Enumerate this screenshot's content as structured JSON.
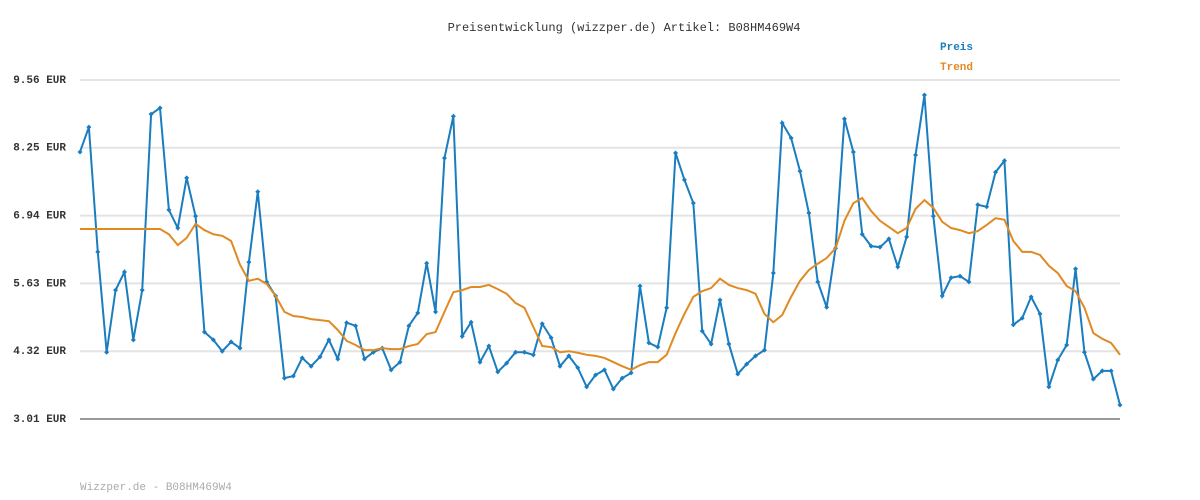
{
  "chart_data": {
    "type": "line",
    "title": "Preisentwicklung (wizzper.de) Artikel: B08HM469W4",
    "footer": "Wizzper.de - B08HM469W4",
    "legend": "top-right",
    "grid": true,
    "categories": [
      null,
      null,
      null,
      null,
      null,
      null,
      null,
      null,
      null,
      null,
      null,
      null,
      null,
      null,
      null,
      null,
      null,
      null,
      null,
      null,
      null,
      null,
      null,
      null,
      null,
      null,
      null,
      null,
      null,
      null,
      null,
      null,
      null,
      null,
      null,
      null,
      null,
      null,
      null,
      null,
      null,
      null,
      null,
      null,
      null,
      null,
      null,
      null,
      null,
      null,
      null,
      null,
      null,
      null,
      null,
      null,
      null,
      null,
      null,
      null,
      null,
      null,
      null,
      null,
      null,
      null,
      null,
      null,
      null,
      null,
      null,
      null,
      null,
      null,
      null,
      null,
      null,
      null,
      null,
      null,
      null,
      null,
      null,
      null,
      null,
      null,
      null,
      null,
      null,
      null,
      null,
      null,
      null,
      null,
      null,
      null,
      null,
      null,
      null,
      null,
      null,
      null,
      null,
      null,
      null,
      null,
      null,
      null,
      null,
      null,
      null,
      null,
      null,
      null,
      null,
      null,
      null,
      null
    ],
    "ylim": [
      3.01,
      9.56
    ],
    "yticks": [
      {
        "value": 3.01,
        "label": "3.01 EUR"
      },
      {
        "value": 4.32,
        "label": "4.32 EUR"
      },
      {
        "value": 5.63,
        "label": "5.63 EUR"
      },
      {
        "value": 6.94,
        "label": "6.94 EUR"
      },
      {
        "value": 8.25,
        "label": "8.25 EUR"
      },
      {
        "value": 9.56,
        "label": "9.56 EUR"
      }
    ],
    "series": [
      {
        "name": "Preis",
        "color": "#1a7dbf",
        "markers": true,
        "values": [
          8.17,
          8.65,
          6.24,
          4.3,
          5.5,
          5.85,
          4.54,
          5.5,
          8.9,
          9.02,
          7.05,
          6.7,
          7.67,
          6.93,
          4.69,
          4.54,
          4.32,
          4.5,
          4.38,
          6.04,
          7.4,
          5.66,
          5.39,
          3.8,
          3.84,
          4.19,
          4.03,
          4.21,
          4.54,
          4.17,
          4.87,
          4.81,
          4.17,
          4.3,
          4.38,
          3.96,
          4.11,
          4.81,
          5.06,
          6.02,
          5.08,
          8.05,
          8.86,
          4.61,
          4.88,
          4.11,
          4.42,
          3.92,
          4.09,
          4.3,
          4.3,
          4.25,
          4.85,
          4.58,
          4.03,
          4.23,
          4.0,
          3.63,
          3.86,
          3.96,
          3.59,
          3.8,
          3.9,
          5.58,
          4.48,
          4.4,
          5.16,
          8.15,
          7.63,
          7.18,
          4.71,
          4.46,
          5.31,
          4.46,
          3.88,
          4.07,
          4.23,
          4.34,
          5.83,
          8.73,
          8.44,
          7.8,
          6.99,
          5.66,
          5.17,
          6.31,
          8.81,
          8.17,
          6.58,
          6.35,
          6.33,
          6.49,
          5.95,
          6.53,
          8.11,
          9.27,
          6.93,
          5.39,
          5.74,
          5.77,
          5.66,
          7.15,
          7.11,
          7.78,
          8.0,
          4.83,
          4.96,
          5.37,
          5.04,
          3.63,
          4.15,
          4.44,
          5.91,
          4.3,
          3.78,
          3.94,
          3.94,
          3.28
        ]
      },
      {
        "name": "Trend",
        "color": "#e08a22",
        "markers": false,
        "values": [
          6.68,
          6.68,
          6.68,
          6.68,
          6.68,
          6.68,
          6.68,
          6.68,
          6.68,
          6.68,
          6.58,
          6.37,
          6.51,
          6.78,
          6.66,
          6.58,
          6.55,
          6.45,
          5.99,
          5.68,
          5.72,
          5.62,
          5.39,
          5.08,
          5.0,
          4.98,
          4.94,
          4.92,
          4.9,
          4.73,
          4.52,
          4.44,
          4.34,
          4.34,
          4.38,
          4.36,
          4.36,
          4.42,
          4.46,
          4.65,
          4.69,
          5.08,
          5.46,
          5.5,
          5.56,
          5.56,
          5.6,
          5.52,
          5.43,
          5.25,
          5.16,
          4.79,
          4.42,
          4.4,
          4.3,
          4.32,
          4.29,
          4.25,
          4.23,
          4.19,
          4.11,
          4.03,
          3.96,
          4.05,
          4.11,
          4.11,
          4.25,
          4.67,
          5.04,
          5.37,
          5.48,
          5.54,
          5.72,
          5.6,
          5.54,
          5.5,
          5.43,
          5.04,
          4.88,
          5.02,
          5.37,
          5.68,
          5.89,
          6.01,
          6.12,
          6.31,
          6.84,
          7.18,
          7.28,
          7.03,
          6.84,
          6.72,
          6.6,
          6.7,
          7.07,
          7.24,
          7.09,
          6.82,
          6.7,
          6.66,
          6.6,
          6.64,
          6.76,
          6.89,
          6.86,
          6.45,
          6.24,
          6.24,
          6.18,
          5.97,
          5.83,
          5.58,
          5.48,
          5.16,
          4.67,
          4.56,
          4.48,
          4.25
        ]
      }
    ]
  }
}
